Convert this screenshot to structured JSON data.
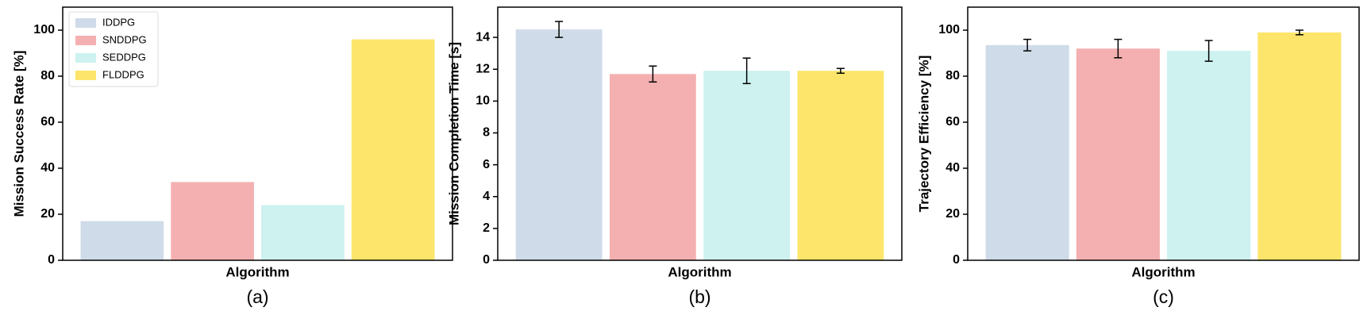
{
  "chart_data": [
    {
      "type": "bar",
      "ylabel": "Mission Success Rate [%]",
      "xlabel": "Algorithm",
      "caption": "(a)",
      "ylim": [
        0,
        110
      ],
      "yticks": [
        0,
        20,
        40,
        60,
        80,
        100
      ],
      "legend": "upper left",
      "series": [
        {
          "name": "IDDPG",
          "color": "#cfdbe8",
          "values": [
            17
          ]
        },
        {
          "name": "SNDDPG",
          "color": "#f4b0b0",
          "values": [
            34
          ]
        },
        {
          "name": "SEDDPG",
          "color": "#cdf2ef",
          "values": [
            24
          ]
        },
        {
          "name": "FLDDPG",
          "color": "#fce56a",
          "values": [
            96
          ]
        }
      ]
    },
    {
      "type": "bar",
      "ylabel": "Mission Completion Time [s]",
      "xlabel": "Algorithm",
      "caption": "(b)",
      "ylim": [
        0,
        15.9
      ],
      "yticks": [
        0,
        2,
        4,
        6,
        8,
        10,
        12,
        14
      ],
      "series": [
        {
          "color": "#cfdbe8",
          "values": [
            14.5
          ],
          "errors": [
            0.5
          ]
        },
        {
          "color": "#f4b0b0",
          "values": [
            11.7
          ],
          "errors": [
            0.5
          ]
        },
        {
          "color": "#cdf2ef",
          "values": [
            11.9
          ],
          "errors": [
            0.8
          ]
        },
        {
          "color": "#fce56a",
          "values": [
            11.9
          ],
          "errors": [
            0.15
          ]
        }
      ]
    },
    {
      "type": "bar",
      "ylabel": "Trajectory Efficiency [%]",
      "xlabel": "Algorithm",
      "caption": "(c)",
      "ylim": [
        0,
        110
      ],
      "yticks": [
        0,
        20,
        40,
        60,
        80,
        100
      ],
      "series": [
        {
          "color": "#cfdbe8",
          "values": [
            93.5
          ],
          "errors": [
            2.5
          ]
        },
        {
          "color": "#f4b0b0",
          "values": [
            92
          ],
          "errors": [
            4
          ]
        },
        {
          "color": "#cdf2ef",
          "values": [
            91
          ],
          "errors": [
            4.5
          ]
        },
        {
          "color": "#fce56a",
          "values": [
            99
          ],
          "errors": [
            1
          ]
        }
      ]
    }
  ]
}
